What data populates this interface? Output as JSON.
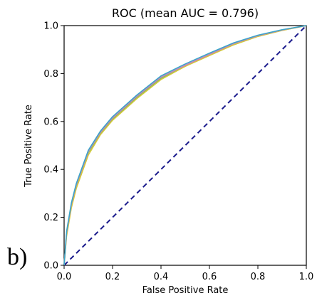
{
  "panel_label": "b)",
  "chart_data": {
    "type": "line",
    "title": "ROC (mean AUC = 0.796)",
    "xlabel": "False Positive Rate",
    "ylabel": "True Positive Rate",
    "xlim": [
      0.0,
      1.0
    ],
    "ylim": [
      0.0,
      1.0
    ],
    "x_ticks": [
      "0.0",
      "0.2",
      "0.4",
      "0.6",
      "0.8",
      "1.0"
    ],
    "y_ticks": [
      "0.0",
      "0.2",
      "0.4",
      "0.6",
      "0.8",
      "1.0"
    ],
    "grid": false,
    "series": [
      {
        "color": "#7fbf5f",
        "x": [
          0.0,
          0.01,
          0.03,
          0.05,
          0.1,
          0.15,
          0.2,
          0.3,
          0.4,
          0.5,
          0.6,
          0.7,
          0.8,
          0.9,
          1.0
        ],
        "y": [
          0.0,
          0.13,
          0.25,
          0.33,
          0.47,
          0.55,
          0.61,
          0.7,
          0.78,
          0.83,
          0.88,
          0.92,
          0.955,
          0.98,
          1.0
        ]
      },
      {
        "color": "#d4c83a",
        "x": [
          0.0,
          0.01,
          0.03,
          0.05,
          0.1,
          0.15,
          0.2,
          0.3,
          0.4,
          0.5,
          0.6,
          0.7,
          0.8,
          0.9,
          1.0
        ],
        "y": [
          0.0,
          0.12,
          0.24,
          0.32,
          0.46,
          0.545,
          0.605,
          0.695,
          0.775,
          0.83,
          0.875,
          0.92,
          0.955,
          0.98,
          1.0
        ]
      },
      {
        "color": "#c77fc0",
        "x": [
          0.0,
          0.01,
          0.03,
          0.05,
          0.1,
          0.15,
          0.2,
          0.3,
          0.4,
          0.5,
          0.6,
          0.7,
          0.8,
          0.9,
          1.0
        ],
        "y": [
          0.0,
          0.135,
          0.255,
          0.335,
          0.475,
          0.555,
          0.615,
          0.705,
          0.785,
          0.835,
          0.88,
          0.925,
          0.958,
          0.982,
          1.0
        ]
      },
      {
        "color": "#3aa6c8",
        "x": [
          0.0,
          0.01,
          0.03,
          0.05,
          0.1,
          0.15,
          0.2,
          0.3,
          0.4,
          0.5,
          0.6,
          0.7,
          0.8,
          0.9,
          1.0
        ],
        "y": [
          0.0,
          0.14,
          0.26,
          0.34,
          0.48,
          0.56,
          0.62,
          0.71,
          0.79,
          0.84,
          0.885,
          0.928,
          0.96,
          0.983,
          1.0
        ]
      }
    ],
    "diagonal": {
      "x": [
        0.0,
        1.0
      ],
      "y": [
        0.0,
        1.0
      ],
      "color": "#1a1a8c",
      "style": "dashed"
    }
  }
}
